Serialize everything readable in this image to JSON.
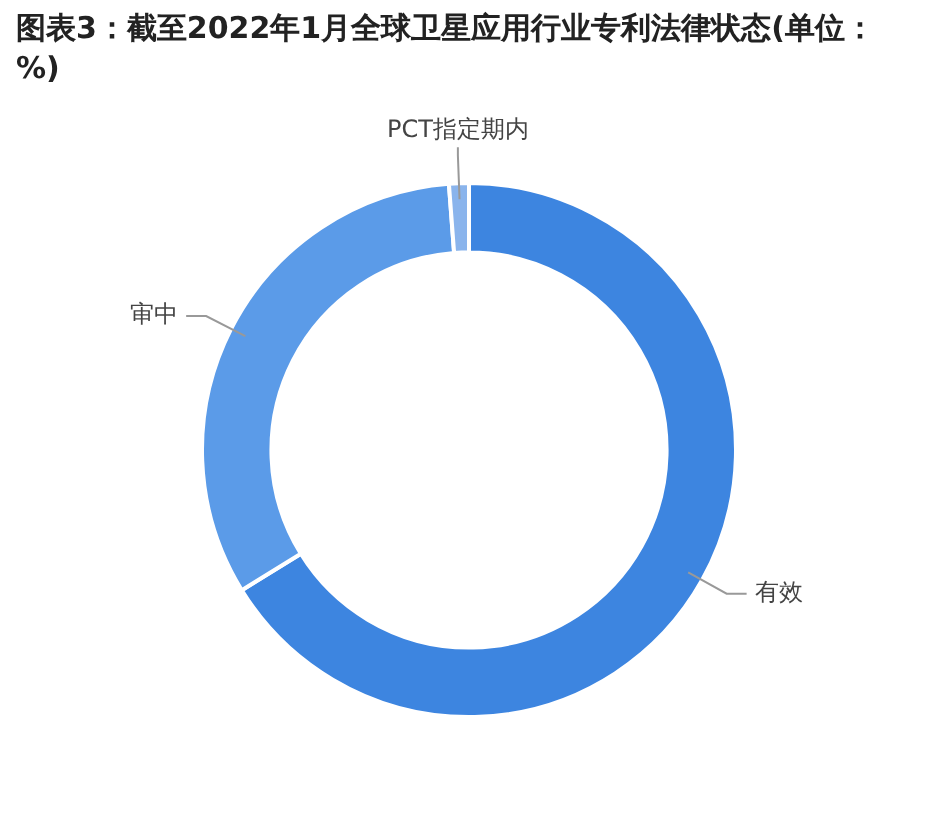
{
  "chart_data": {
    "type": "donut",
    "title": "图表3：截至2022年1月全球卫星应用行业专利法律状态(单位：%)",
    "categories": [
      "有效",
      "审中",
      "PCT指定期内"
    ],
    "values": [
      66.2,
      32.6,
      1.2
    ],
    "colors": [
      "#3d85e0",
      "#5b9be8",
      "#8ab4ec"
    ],
    "legend": false
  }
}
